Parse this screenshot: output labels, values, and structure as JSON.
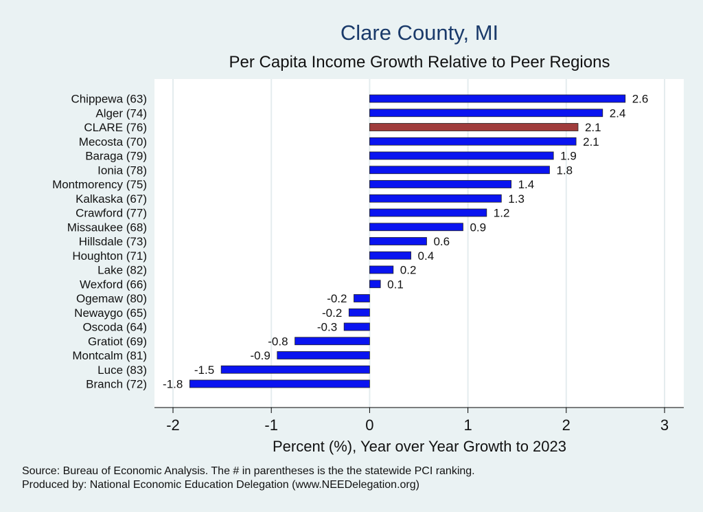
{
  "chart_data": {
    "type": "bar",
    "orientation": "horizontal",
    "title": "Clare County, MI",
    "subtitle": "Per Capita Income Growth Relative to Peer Regions",
    "xlabel": "Percent (%), Year over Year Growth to 2023",
    "ylabel": "",
    "xlim": [
      -2.2,
      3.2
    ],
    "x_ticks": [
      -2,
      -1,
      0,
      1,
      2,
      3
    ],
    "grid": true,
    "categories": [
      "Chippewa (63)",
      "Alger (74)",
      "CLARE (76)",
      "Mecosta (70)",
      "Baraga (79)",
      "Ionia (78)",
      "Montmorency (75)",
      "Kalkaska (67)",
      "Crawford (77)",
      "Missaukee (68)",
      "Hillsdale (73)",
      "Houghton (71)",
      "Lake (82)",
      "Wexford (66)",
      "Ogemaw (80)",
      "Newaygo (65)",
      "Oscoda (64)",
      "Gratiot (69)",
      "Montcalm (81)",
      "Luce (83)",
      "Branch (72)"
    ],
    "values": [
      2.6,
      2.37,
      2.12,
      2.1,
      1.87,
      1.83,
      1.44,
      1.34,
      1.19,
      0.95,
      0.58,
      0.42,
      0.24,
      0.11,
      -0.16,
      -0.21,
      -0.26,
      -0.76,
      -0.94,
      -1.51,
      -1.83
    ],
    "labels": [
      "2.6",
      "2.4",
      "2.1",
      "2.1",
      "1.9",
      "1.8",
      "1.4",
      "1.3",
      "1.2",
      "0.9",
      "0.6",
      "0.4",
      "0.2",
      "0.1",
      "-0.2",
      "-0.2",
      "-0.3",
      "-0.8",
      "-0.9",
      "-1.5",
      "-1.8"
    ],
    "highlight": "CLARE (76)",
    "colors": {
      "bar": "#0a14f0",
      "highlight": "#a03c3c",
      "plot_bg": "#ffffff",
      "page_bg": "#eaf2f3",
      "grid": "#e4ecee"
    }
  },
  "footer": {
    "source": "Source: Bureau of Economic Analysis. The # in parentheses is the the statewide PCI ranking.",
    "produced_by": "Produced by: National Economic Education Delegation (www.NEEDelegation.org)"
  }
}
